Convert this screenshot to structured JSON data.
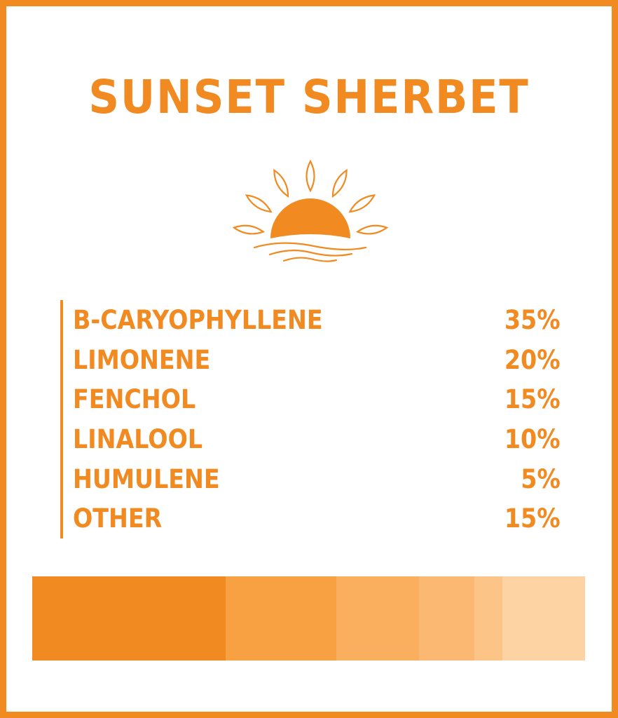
{
  "title": "SUNSET SHERBET",
  "icon": "sunset-icon",
  "terpenes": [
    {
      "name": "B-CARYOPHYLLENE",
      "percent_label": "35%"
    },
    {
      "name": "LIMONENE",
      "percent_label": "20%"
    },
    {
      "name": "FENCHOL",
      "percent_label": "15%"
    },
    {
      "name": "LINALOOL",
      "percent_label": "10%"
    },
    {
      "name": "HUMULENE",
      "percent_label": "5%"
    },
    {
      "name": "OTHER",
      "percent_label": "15%"
    }
  ],
  "colors": {
    "accent": "#F08A21",
    "background": "#FFFFFF"
  },
  "chart_data": {
    "type": "bar",
    "orientation": "horizontal-stacked",
    "categories": [
      "B-CARYOPHYLLENE",
      "LIMONENE",
      "FENCHOL",
      "LINALOOL",
      "HUMULENE",
      "OTHER"
    ],
    "values": [
      35,
      20,
      15,
      10,
      5,
      15
    ],
    "colors": [
      "#F08A21",
      "#F7A142",
      "#F9AF5E",
      "#FBB872",
      "#FCC587",
      "#FDD3A3"
    ],
    "xlim": [
      0,
      100
    ]
  }
}
